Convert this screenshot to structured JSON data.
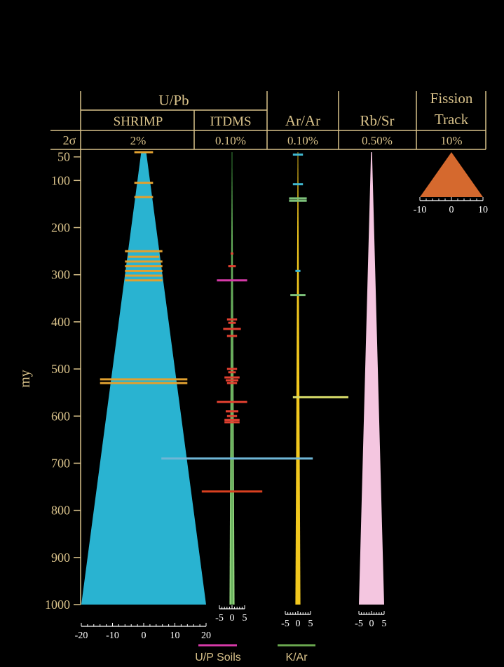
{
  "chart_data": {
    "type": "area",
    "ylabel": "my",
    "y_ticks": [
      50,
      100,
      200,
      300,
      400,
      500,
      600,
      700,
      800,
      900,
      1000
    ],
    "ylim": [
      40,
      1000
    ],
    "header": {
      "sigma_label": "2σ",
      "groups": [
        {
          "id": "upb",
          "label": "U/Pb"
        },
        {
          "id": "fission",
          "label": "Fission\nTrack"
        }
      ],
      "columns": [
        {
          "id": "shrimp",
          "label": "SHRIMP",
          "precision": "2%"
        },
        {
          "id": "itdms",
          "label": "ITDMS",
          "precision": "0.10%"
        },
        {
          "id": "arar",
          "label": "Ar/Ar",
          "precision": "0.10%"
        },
        {
          "id": "rbsr",
          "label": "Rb/Sr",
          "precision": "0.50%"
        },
        {
          "id": "fission",
          "label": "Track",
          "precision": "10%"
        }
      ]
    },
    "series": [
      {
        "id": "shrimp",
        "error_pct": 2,
        "color": "#29b3d1",
        "x_ticks": [
          -20,
          -10,
          0,
          10,
          20
        ]
      },
      {
        "id": "itdms",
        "error_pct": 0.1,
        "color": "#8fd07a",
        "x_ticks": [
          -5,
          0,
          5
        ]
      },
      {
        "id": "arar",
        "error_pct": 0.1,
        "color": "#f2c81e",
        "x_ticks": [
          -5,
          0,
          5
        ]
      },
      {
        "id": "rbsr",
        "error_pct": 0.5,
        "color": "#f4c6e0",
        "x_ticks": [
          -5,
          0,
          5
        ]
      },
      {
        "id": "fission",
        "error_pct": 10,
        "color": "#d5692e",
        "x_ticks": [
          -10,
          0,
          10
        ]
      }
    ],
    "measurements": {
      "shrimp": [
        {
          "age": 40,
          "err": 3,
          "color": "#e0a030"
        },
        {
          "age": 105,
          "err": 3,
          "color": "#e0a030"
        },
        {
          "age": 135,
          "err": 3,
          "color": "#e0a030"
        },
        {
          "age": 250,
          "err": 6,
          "color": "#e0a030"
        },
        {
          "age": 262,
          "err": 5,
          "color": "#e0a030"
        },
        {
          "age": 272,
          "err": 6,
          "color": "#e0a030"
        },
        {
          "age": 282,
          "err": 6,
          "color": "#e0a030"
        },
        {
          "age": 292,
          "err": 6,
          "color": "#e0a030"
        },
        {
          "age": 302,
          "err": 6,
          "color": "#e0a030"
        },
        {
          "age": 312,
          "err": 6,
          "color": "#e0a030"
        },
        {
          "age": 522,
          "err": 14,
          "color": "#e0a030"
        },
        {
          "age": 530,
          "err": 14,
          "color": "#e0a030"
        }
      ],
      "itdms": [
        {
          "age": 255,
          "err": 0.4,
          "color": "#e04030"
        },
        {
          "age": 282,
          "err": 1.5,
          "color": "#e04030"
        },
        {
          "age": 312,
          "err": 6,
          "color": "#d63aa8"
        },
        {
          "age": 395,
          "err": 2,
          "color": "#e04030"
        },
        {
          "age": 402,
          "err": 1.5,
          "color": "#e04030"
        },
        {
          "age": 415,
          "err": 3.5,
          "color": "#e04030"
        },
        {
          "age": 430,
          "err": 2,
          "color": "#e04030"
        },
        {
          "age": 500,
          "err": 2,
          "color": "#e04030"
        },
        {
          "age": 507,
          "err": 1.5,
          "color": "#e04030"
        },
        {
          "age": 518,
          "err": 3,
          "color": "#e04030"
        },
        {
          "age": 524,
          "err": 2.5,
          "color": "#e04030"
        },
        {
          "age": 530,
          "err": 2,
          "color": "#e04030"
        },
        {
          "age": 570,
          "err": 6,
          "color": "#e04030"
        },
        {
          "age": 590,
          "err": 2.5,
          "color": "#e04030"
        },
        {
          "age": 600,
          "err": 2,
          "color": "#e04030"
        },
        {
          "age": 608,
          "err": 3,
          "color": "#e04030"
        },
        {
          "age": 613,
          "err": 3,
          "color": "#e04030"
        },
        {
          "age": 760,
          "err": 12,
          "color": "#d84020"
        },
        {
          "age": 690,
          "err": 30,
          "color": "#6fb6d6",
          "shift": 2
        }
      ],
      "arar": [
        {
          "age": 45,
          "err": 2,
          "color": "#40b8d0"
        },
        {
          "age": 108,
          "err": 2,
          "color": "#40b8d0"
        },
        {
          "age": 138,
          "err": 3.5,
          "color": "#7cc07a"
        },
        {
          "age": 143,
          "err": 3.5,
          "color": "#7cc07a"
        },
        {
          "age": 292,
          "err": 1,
          "color": "#40b8d0"
        },
        {
          "age": 343,
          "err": 3,
          "color": "#7cc07a"
        },
        {
          "age": 560,
          "err": 11,
          "color": "#d8dc6a",
          "shift": 9
        }
      ],
      "fission": []
    },
    "legend": [
      {
        "label": "U/P Soils",
        "color": "#d63aa8"
      },
      {
        "label": "K/Ar",
        "color": "#6aa84f"
      }
    ]
  }
}
